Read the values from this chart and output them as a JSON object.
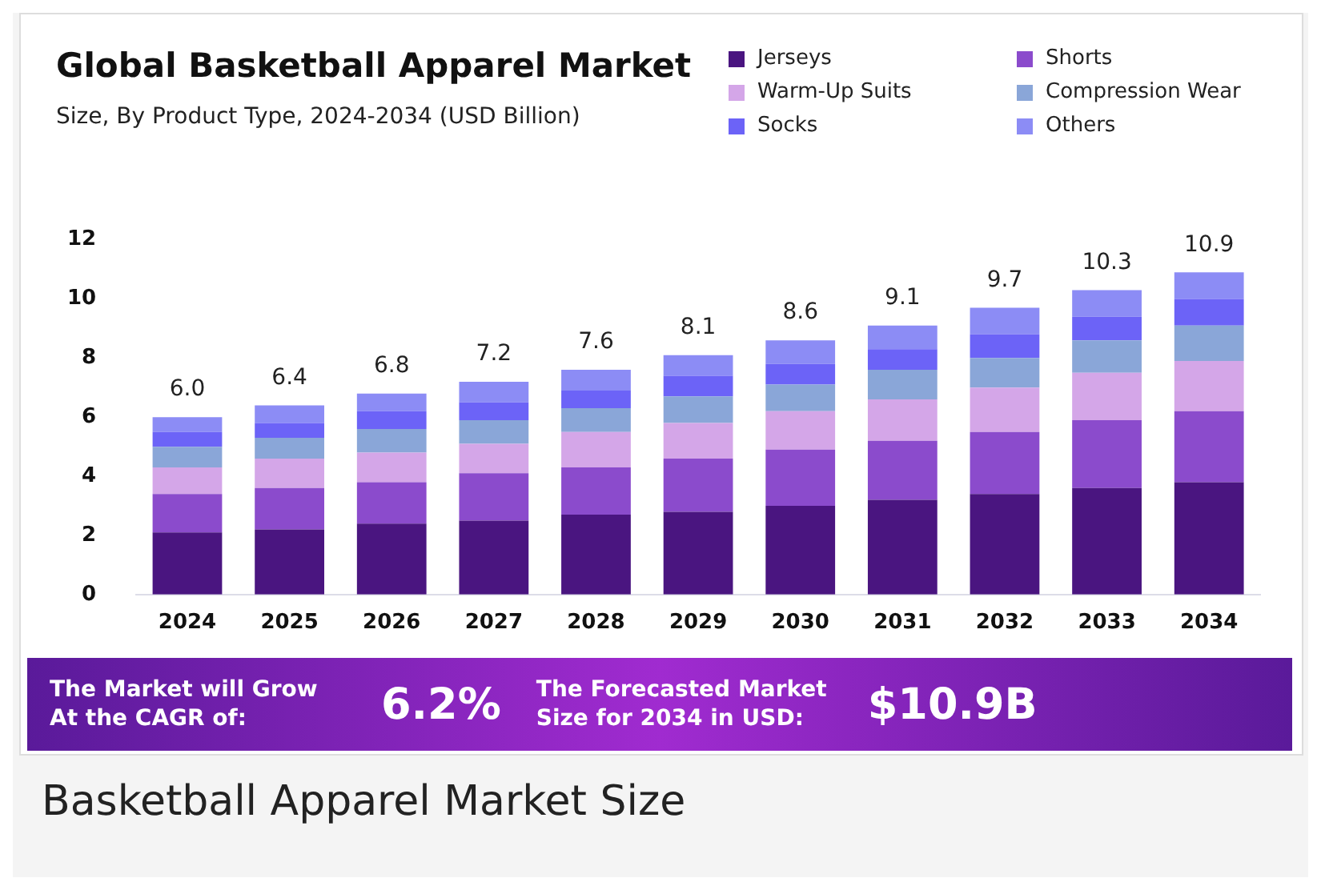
{
  "chart_data": {
    "type": "bar",
    "title": "Global Basketball Apparel Market",
    "subtitle": "Size, By Product Type, 2024-2034 (USD Billion)",
    "categories": [
      "2024",
      "2025",
      "2026",
      "2027",
      "2028",
      "2029",
      "2030",
      "2031",
      "2032",
      "2033",
      "2034"
    ],
    "stacked": true,
    "series": [
      {
        "name": "Jerseys",
        "color": "#4a1580",
        "values": [
          2.1,
          2.2,
          2.4,
          2.5,
          2.7,
          2.8,
          3.0,
          3.2,
          3.4,
          3.6,
          3.8
        ]
      },
      {
        "name": "Shorts",
        "color": "#8b4bcc",
        "values": [
          1.3,
          1.4,
          1.4,
          1.6,
          1.6,
          1.8,
          1.9,
          2.0,
          2.1,
          2.3,
          2.4
        ]
      },
      {
        "name": "Warm-Up Suits",
        "color": "#d4a6e8",
        "values": [
          0.9,
          1.0,
          1.0,
          1.0,
          1.2,
          1.2,
          1.3,
          1.4,
          1.5,
          1.6,
          1.7
        ]
      },
      {
        "name": "Compression Wear",
        "color": "#8aa6d8",
        "values": [
          0.7,
          0.7,
          0.8,
          0.8,
          0.8,
          0.9,
          0.9,
          1.0,
          1.0,
          1.1,
          1.2
        ]
      },
      {
        "name": "Socks",
        "color": "#6c63f7",
        "values": [
          0.5,
          0.5,
          0.6,
          0.6,
          0.6,
          0.7,
          0.7,
          0.7,
          0.8,
          0.8,
          0.9
        ]
      },
      {
        "name": "Others",
        "color": "#8c8cf5",
        "values": [
          0.5,
          0.6,
          0.6,
          0.7,
          0.7,
          0.7,
          0.8,
          0.8,
          0.9,
          0.9,
          0.9
        ]
      }
    ],
    "totals": [
      "6.0",
      "6.4",
      "6.8",
      "7.2",
      "7.6",
      "8.1",
      "8.6",
      "9.1",
      "9.7",
      "10.3",
      "10.9"
    ],
    "ylim": [
      0,
      12
    ],
    "yticks": [
      0,
      2,
      4,
      6,
      8,
      10,
      12
    ],
    "grid": false,
    "legend": "top right",
    "annotations": [
      "The Market will Grow At the CAGR of:",
      "6.2%",
      "The Forecasted Market Size for 2034 in USD:",
      "$10.9B",
      "Basketball Apparel Market Size"
    ]
  }
}
